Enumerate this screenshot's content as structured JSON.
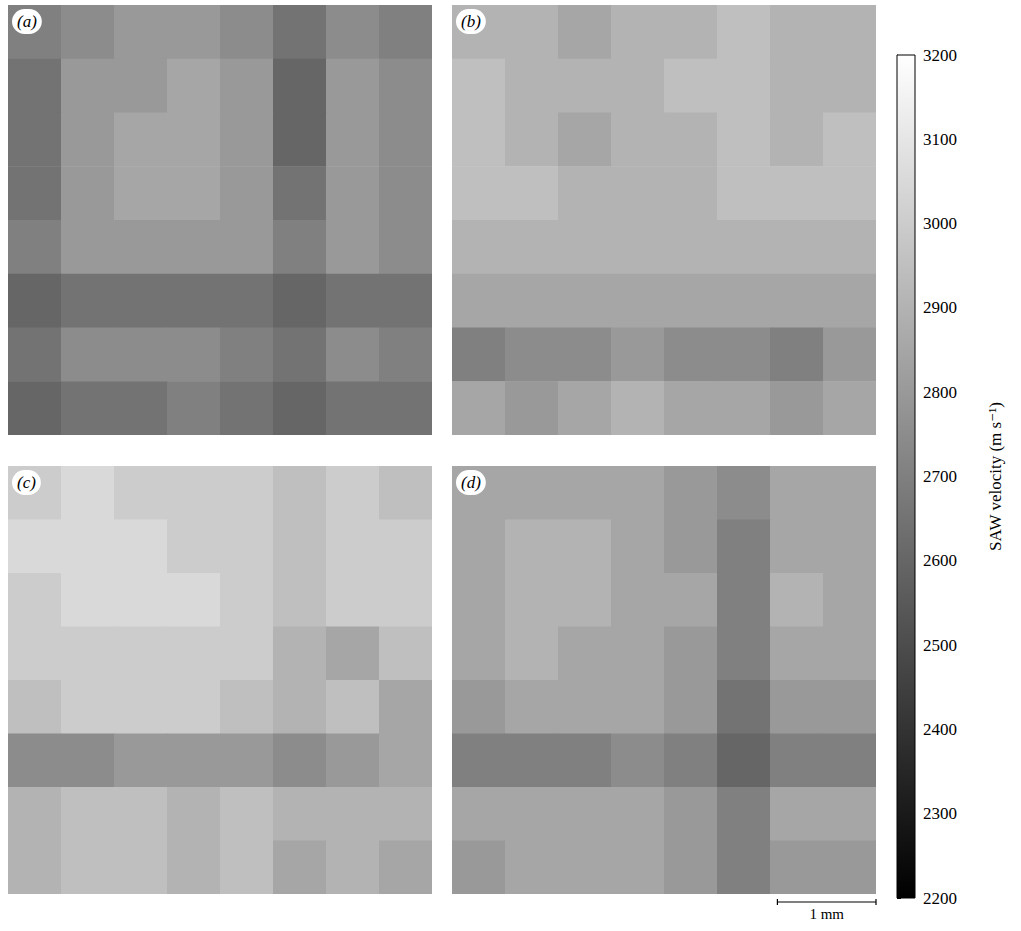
{
  "chart_data": [
    {
      "type": "heatmap",
      "title": "(a)",
      "xlim": [
        0,
        4.3
      ],
      "ylim": [
        0,
        4.4
      ],
      "tick_labels": false,
      "values": [
        [
          2700,
          2750,
          2800,
          2800,
          2750,
          2650,
          2750,
          2700
        ],
        [
          2650,
          2800,
          2800,
          2850,
          2800,
          2600,
          2800,
          2750
        ],
        [
          2650,
          2800,
          2850,
          2850,
          2800,
          2600,
          2800,
          2750
        ],
        [
          2650,
          2800,
          2850,
          2850,
          2800,
          2650,
          2800,
          2750
        ],
        [
          2700,
          2800,
          2800,
          2800,
          2800,
          2700,
          2800,
          2750
        ],
        [
          2600,
          2650,
          2650,
          2650,
          2650,
          2600,
          2650,
          2650
        ],
        [
          2650,
          2750,
          2750,
          2750,
          2700,
          2650,
          2750,
          2700
        ],
        [
          2600,
          2650,
          2650,
          2700,
          2650,
          2600,
          2650,
          2650
        ]
      ]
    },
    {
      "type": "heatmap",
      "title": "(b)",
      "xlim": [
        0,
        4.3
      ],
      "ylim": [
        0,
        4.4
      ],
      "tick_labels": false,
      "values": [
        [
          2900,
          2900,
          2850,
          2900,
          2900,
          2950,
          2900,
          2900
        ],
        [
          2950,
          2900,
          2900,
          2900,
          2950,
          2950,
          2900,
          2900
        ],
        [
          2950,
          2900,
          2850,
          2900,
          2900,
          2950,
          2900,
          2950
        ],
        [
          2950,
          2950,
          2900,
          2900,
          2900,
          2950,
          2950,
          2950
        ],
        [
          2900,
          2900,
          2900,
          2900,
          2900,
          2900,
          2900,
          2900
        ],
        [
          2850,
          2850,
          2850,
          2850,
          2850,
          2850,
          2850,
          2850
        ],
        [
          2700,
          2750,
          2750,
          2800,
          2750,
          2750,
          2700,
          2800
        ],
        [
          2850,
          2800,
          2850,
          2900,
          2850,
          2850,
          2800,
          2850
        ]
      ]
    },
    {
      "type": "heatmap",
      "title": "(c)",
      "xlim": [
        0,
        4.3
      ],
      "ylim": [
        0,
        4.4
      ],
      "tick_labels": false,
      "values": [
        [
          3000,
          3050,
          3000,
          3000,
          3000,
          2950,
          3000,
          2950
        ],
        [
          3050,
          3050,
          3050,
          3000,
          3000,
          2950,
          3000,
          3000
        ],
        [
          3000,
          3050,
          3050,
          3050,
          3000,
          2950,
          3000,
          3000
        ],
        [
          3000,
          3000,
          3000,
          3000,
          3000,
          2900,
          2850,
          2950
        ],
        [
          2950,
          3000,
          3000,
          3000,
          2950,
          2900,
          2950,
          2850
        ],
        [
          2750,
          2750,
          2800,
          2800,
          2800,
          2750,
          2800,
          2850
        ],
        [
          2900,
          2950,
          2950,
          2900,
          2950,
          2900,
          2900,
          2900
        ],
        [
          2900,
          2950,
          2950,
          2900,
          2950,
          2850,
          2900,
          2850
        ]
      ]
    },
    {
      "type": "heatmap",
      "title": "(d)",
      "xlim": [
        0,
        4.3
      ],
      "ylim": [
        0,
        4.4
      ],
      "tick_labels": false,
      "values": [
        [
          2850,
          2850,
          2850,
          2850,
          2800,
          2750,
          2850,
          2850
        ],
        [
          2850,
          2900,
          2900,
          2850,
          2800,
          2700,
          2850,
          2850
        ],
        [
          2850,
          2900,
          2900,
          2850,
          2850,
          2700,
          2900,
          2850
        ],
        [
          2850,
          2900,
          2850,
          2850,
          2800,
          2700,
          2850,
          2850
        ],
        [
          2800,
          2850,
          2850,
          2850,
          2800,
          2650,
          2800,
          2800
        ],
        [
          2700,
          2700,
          2700,
          2750,
          2700,
          2600,
          2700,
          2700
        ],
        [
          2850,
          2850,
          2850,
          2850,
          2800,
          2700,
          2850,
          2850
        ],
        [
          2800,
          2850,
          2850,
          2850,
          2800,
          2700,
          2800,
          2800
        ]
      ]
    }
  ],
  "colorbar": {
    "label": "SAW velocity (m s⁻¹)",
    "range": [
      2200,
      3200
    ],
    "ticks": [
      2200,
      2300,
      2400,
      2500,
      2600,
      2700,
      2800,
      2900,
      3000,
      3100,
      3200
    ]
  },
  "scale_bar": {
    "label": "1 mm",
    "length": 1
  }
}
